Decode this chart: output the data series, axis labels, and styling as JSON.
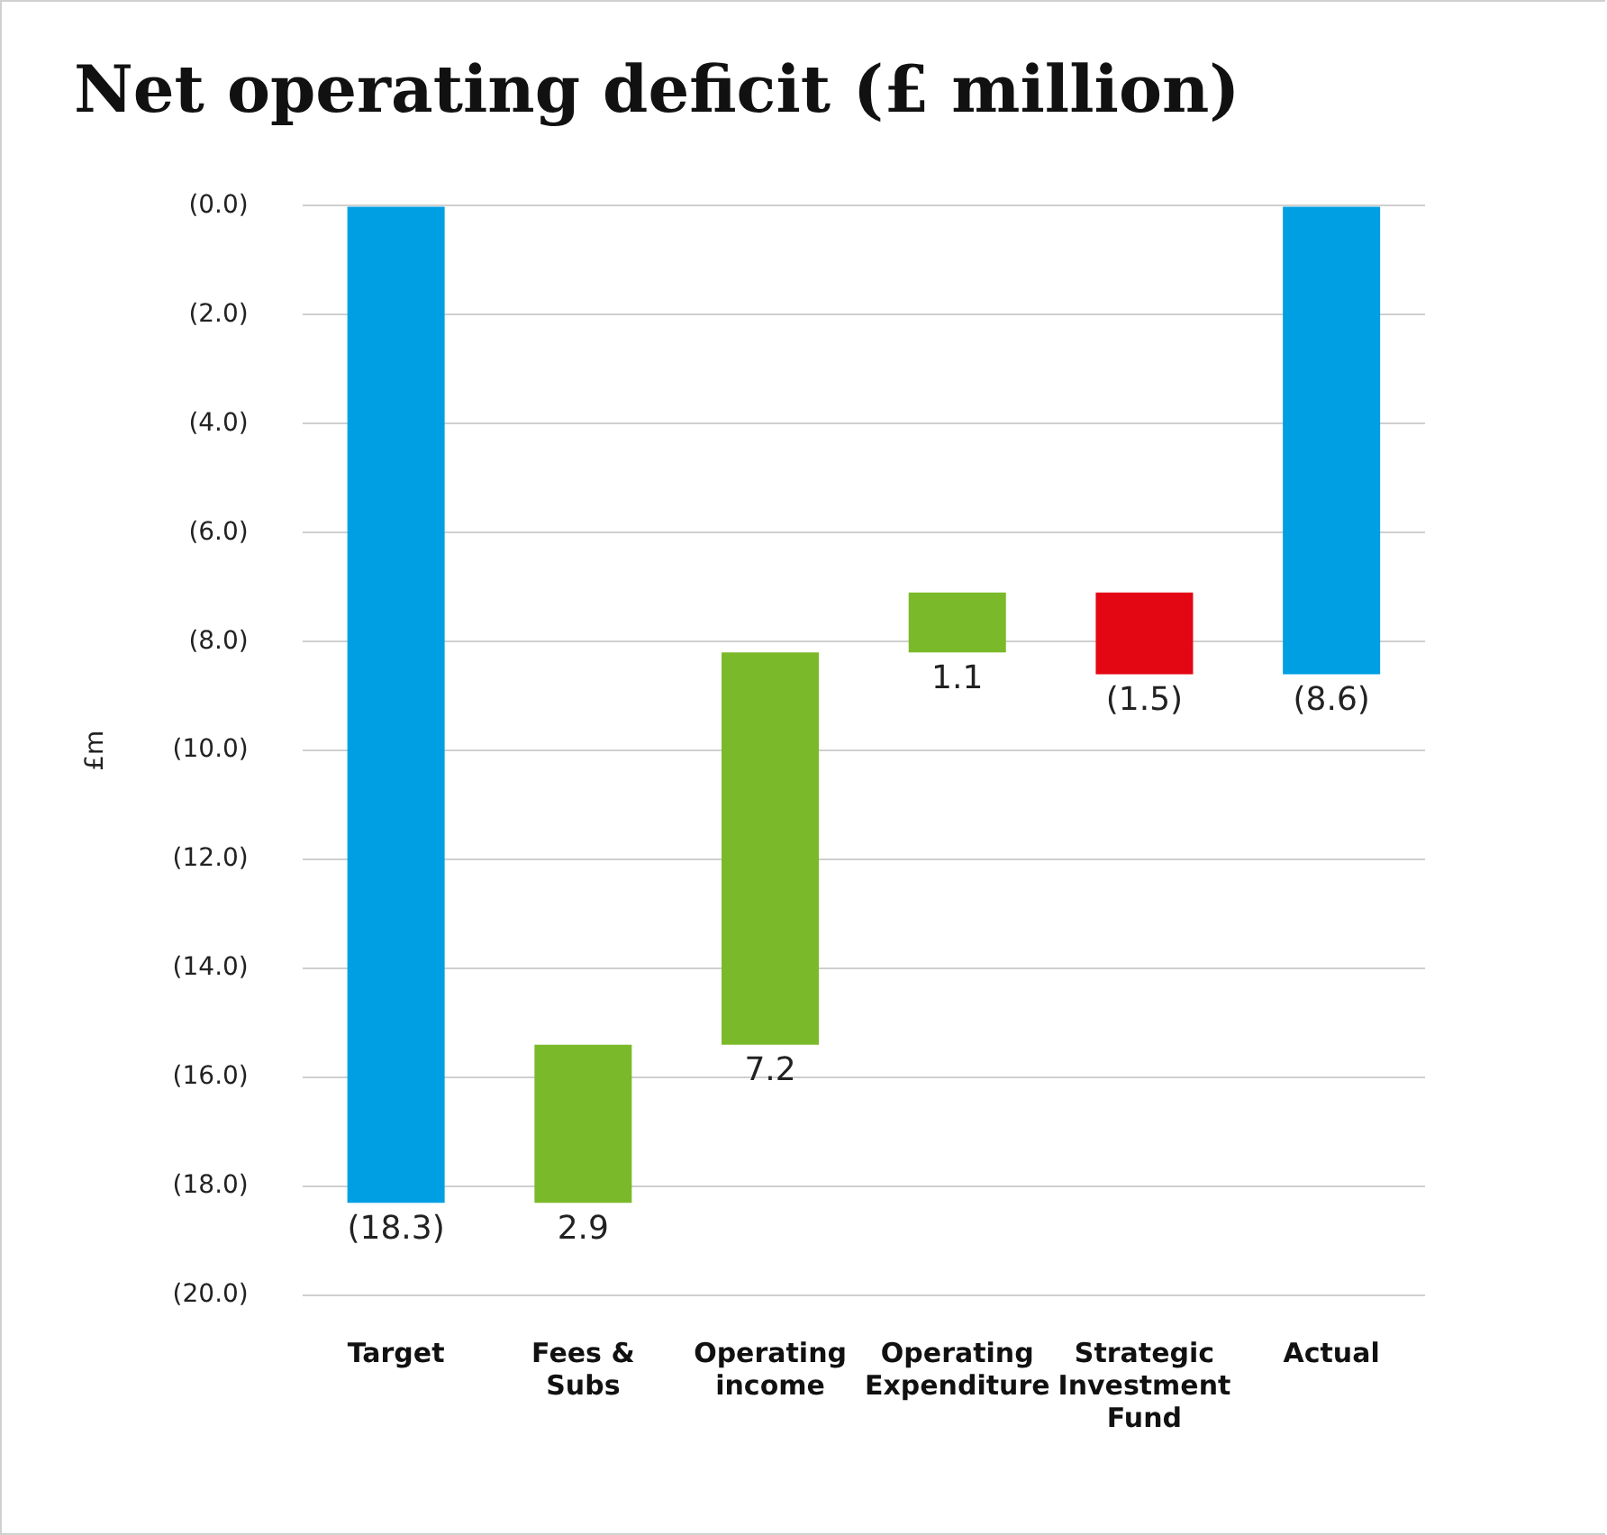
{
  "chart_data": {
    "type": "bar",
    "title": "Net operating deficit (£ million)",
    "ylabel": "£m",
    "categories": [
      "Target",
      "Fees & Subs",
      "Operating income",
      "Operating Expenditure",
      "Strategic Investment Fund",
      "Actual"
    ],
    "base": [
      0,
      -18.3,
      -15.4,
      -8.2,
      -7.1,
      0
    ],
    "values": [
      -18.3,
      2.9,
      7.2,
      1.1,
      -1.5,
      -8.6
    ],
    "colors": [
      "#009fe3",
      "#7ab929",
      "#7ab929",
      "#7ab929",
      "#e30613",
      "#009fe3"
    ],
    "value_labels": [
      "(18.3)",
      "2.9",
      "7.2",
      "1.1",
      "(1.5)",
      "(8.6)"
    ],
    "ylim": [
      -20,
      0
    ],
    "yticks": [
      {
        "value": 0,
        "label": "(0.0)"
      },
      {
        "value": -2,
        "label": "(2.0)"
      },
      {
        "value": -4,
        "label": "(4.0)"
      },
      {
        "value": -6,
        "label": "(6.0)"
      },
      {
        "value": -8,
        "label": "(8.0)"
      },
      {
        "value": -10,
        "label": "(10.0)"
      },
      {
        "value": -12,
        "label": "(12.0)"
      },
      {
        "value": -14,
        "label": "(14.0)"
      },
      {
        "value": -16,
        "label": "(16.0)"
      },
      {
        "value": -18,
        "label": "(18.0)"
      },
      {
        "value": -20,
        "label": "(20.0)"
      }
    ],
    "grid": "y",
    "legend": false
  }
}
